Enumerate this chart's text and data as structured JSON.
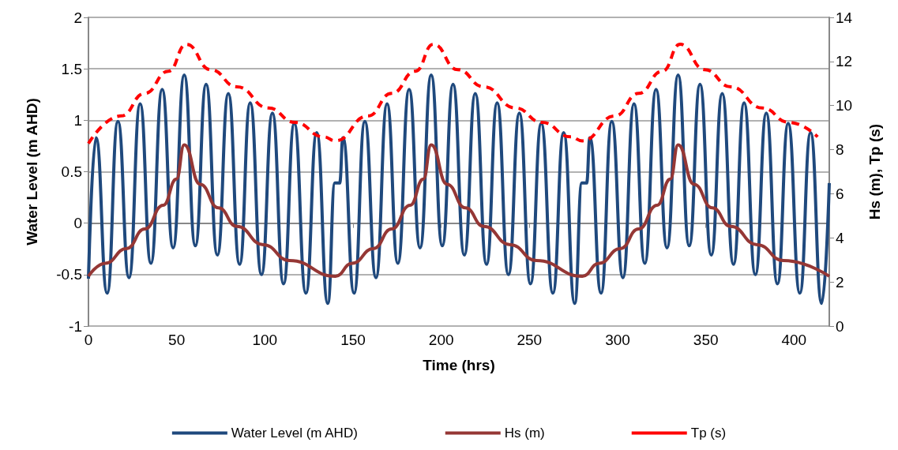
{
  "chart_data": {
    "type": "line",
    "xlabel": "Time (hrs)",
    "ylabel": "Water Level (m AHD)",
    "y2label": "Hs (m), Tp (s)",
    "xlim": [
      0,
      420
    ],
    "xticks": [
      0,
      50,
      100,
      150,
      200,
      250,
      300,
      350,
      400
    ],
    "ylim": [
      -1,
      2
    ],
    "yticks": [
      -1,
      -0.5,
      0,
      0.5,
      1,
      1.5,
      2
    ],
    "y2lim": [
      0,
      14
    ],
    "y2ticks": [
      0,
      2,
      4,
      6,
      8,
      10,
      12,
      14
    ],
    "grid": "y",
    "legend": "bottom",
    "marker": "none",
    "series": [
      {
        "name": "Water Level (m AHD)",
        "color": "#1f497d",
        "line_style": "solid",
        "x": [
          0,
          4.3,
          10.6,
          16.7,
          23.0,
          29.3,
          35.4,
          41.8,
          48.0,
          54.3,
          60.6,
          66.7,
          73.1,
          79.3,
          85.7,
          91.7,
          98.1,
          104.3,
          110.6,
          116.7,
          123.3,
          129.4,
          135.7,
          139.7,
          142.4,
          144.3,
          150.6,
          156.7,
          163.0,
          169.3,
          175.4,
          181.8,
          188.0,
          194.3,
          200.6,
          206.7,
          213.1,
          219.3,
          225.7,
          231.7,
          238.1,
          244.3,
          250.6,
          256.7,
          263.3,
          269.4,
          275.7,
          279.7,
          282.4,
          284.3,
          290.6,
          296.7,
          303.0,
          309.3,
          315.4,
          321.8,
          328.0,
          334.3,
          340.6,
          346.7,
          353.1,
          359.3,
          365.7,
          371.7,
          378.1,
          384.3,
          390.6,
          396.7,
          403.3,
          409.4,
          415.7,
          420
        ],
        "values": [
          -0.54,
          0.83,
          -0.68,
          0.99,
          -0.53,
          1.16,
          -0.39,
          1.3,
          -0.24,
          1.44,
          -0.22,
          1.35,
          -0.31,
          1.26,
          -0.4,
          1.17,
          -0.5,
          1.07,
          -0.59,
          0.97,
          -0.68,
          0.88,
          -0.78,
          0.39,
          0.39,
          0.83,
          -0.68,
          0.99,
          -0.53,
          1.16,
          -0.39,
          1.3,
          -0.24,
          1.44,
          -0.22,
          1.35,
          -0.31,
          1.26,
          -0.4,
          1.17,
          -0.5,
          1.07,
          -0.59,
          0.97,
          -0.68,
          0.88,
          -0.78,
          0.39,
          0.39,
          0.83,
          -0.68,
          0.99,
          -0.53,
          1.16,
          -0.39,
          1.3,
          -0.24,
          1.44,
          -0.22,
          1.35,
          -0.31,
          1.26,
          -0.4,
          1.17,
          -0.5,
          1.07,
          -0.59,
          0.97,
          -0.68,
          0.88,
          -0.78,
          0.39
        ]
      },
      {
        "name": "Hs (m)",
        "color": "#953735",
        "line_style": "solid",
        "axis": "y2",
        "x": [
          0,
          9.6,
          21.5,
          31.9,
          42.4,
          49.9,
          54.3,
          63.3,
          73.7,
          84.2,
          99.1,
          114,
          140,
          149.6,
          161.5,
          171.9,
          182.4,
          189.9,
          194.3,
          203.3,
          213.7,
          224.2,
          239.1,
          254,
          280,
          289.6,
          301.5,
          311.9,
          322.4,
          329.9,
          334.3,
          343.3,
          353.7,
          364.2,
          379.1,
          394,
          420
        ],
        "values": [
          2.26,
          2.85,
          3.51,
          4.4,
          5.48,
          6.67,
          8.22,
          6.43,
          5.36,
          4.52,
          3.69,
          2.97,
          2.26,
          2.85,
          3.51,
          4.4,
          5.48,
          6.67,
          8.22,
          6.43,
          5.36,
          4.52,
          3.69,
          2.97,
          2.26,
          2.85,
          3.51,
          4.4,
          5.48,
          6.67,
          8.22,
          6.43,
          5.36,
          4.52,
          3.69,
          2.97,
          2.26
        ]
      },
      {
        "name": "Tp (s)",
        "color": "#ff0000",
        "line_style": "dashed",
        "axis": "y2",
        "x": [
          0,
          18.5,
          31.9,
          45.4,
          55.5,
          69.3,
          84.2,
          102.1,
          117,
          133.4,
          140,
          158.5,
          171.9,
          185.4,
          195.5,
          209.3,
          224.2,
          242.1,
          257,
          273.4,
          280,
          298.5,
          311.9,
          325.4,
          335.5,
          349.3,
          364.2,
          382.1,
          397,
          413.4
        ],
        "values": [
          8.28,
          9.53,
          10.55,
          11.56,
          12.78,
          11.63,
          10.85,
          9.89,
          9.24,
          8.58,
          8.4,
          9.53,
          10.55,
          11.56,
          12.78,
          11.63,
          10.85,
          9.89,
          9.24,
          8.58,
          8.4,
          9.53,
          10.55,
          11.56,
          12.78,
          11.63,
          10.85,
          9.89,
          9.24,
          8.58
        ]
      }
    ]
  }
}
